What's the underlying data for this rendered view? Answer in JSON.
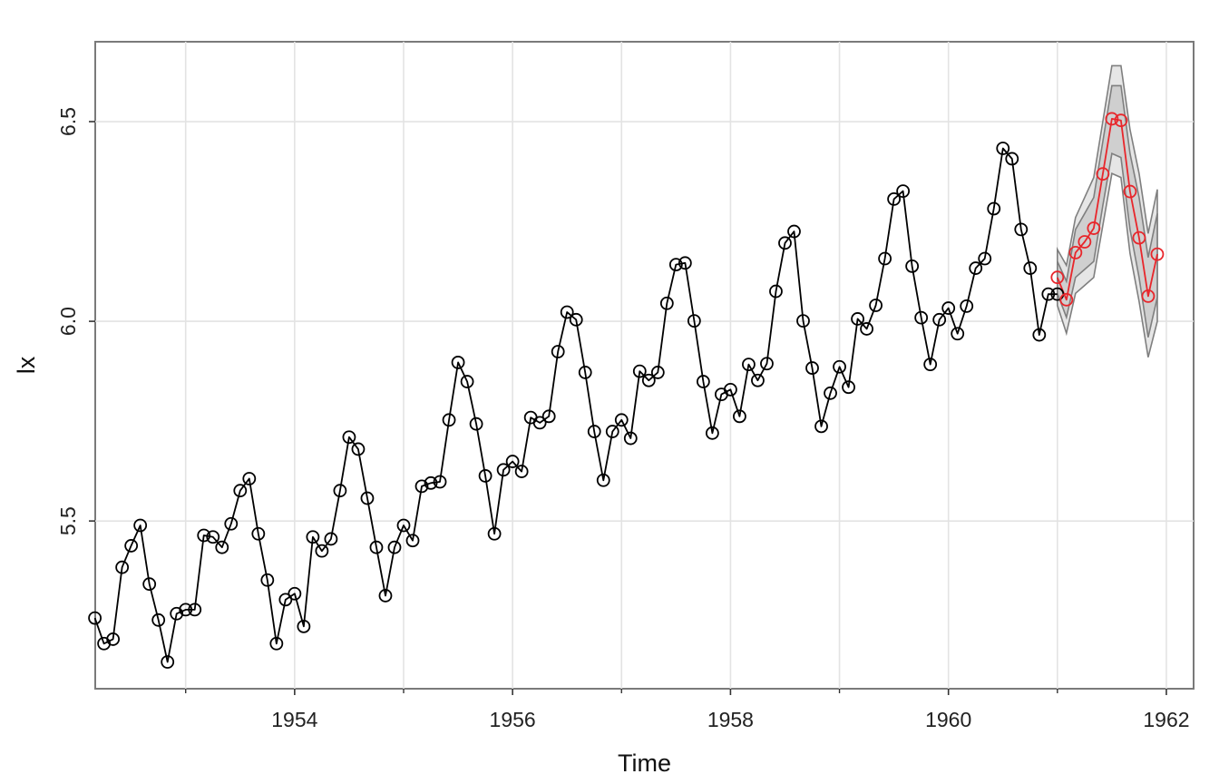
{
  "chart_data": {
    "type": "line",
    "title": "",
    "xlabel": "Time",
    "ylabel": "lx",
    "xlim": [
      1952.17,
      1962.25
    ],
    "ylim": [
      5.08,
      6.7
    ],
    "grid": true,
    "x_ticks": [
      1954,
      1956,
      1958,
      1960,
      1962
    ],
    "x_tick_labels": [
      "1954",
      "1956",
      "1958",
      "1960",
      "1962"
    ],
    "x_minor_ticks": [
      1953,
      1955,
      1957,
      1959,
      1961
    ],
    "y_ticks": [
      5.5,
      6.0,
      6.5
    ],
    "y_tick_labels": [
      "5.5",
      "6.0",
      "6.5"
    ],
    "series": [
      {
        "role": "observed",
        "color": "#000000",
        "start": 1952.1667,
        "step": 0.0833333,
        "values": [
          5.257,
          5.193,
          5.204,
          5.384,
          5.438,
          5.489,
          5.342,
          5.252,
          5.147,
          5.268,
          5.278,
          5.278,
          5.464,
          5.46,
          5.434,
          5.493,
          5.576,
          5.606,
          5.468,
          5.352,
          5.193,
          5.303,
          5.318,
          5.236,
          5.46,
          5.425,
          5.455,
          5.576,
          5.71,
          5.68,
          5.557,
          5.434,
          5.313,
          5.434,
          5.489,
          5.451,
          5.587,
          5.595,
          5.598,
          5.753,
          5.897,
          5.849,
          5.743,
          5.613,
          5.468,
          5.628,
          5.649,
          5.624,
          5.759,
          5.746,
          5.762,
          5.924,
          6.023,
          6.004,
          5.872,
          5.724,
          5.602,
          5.724,
          5.753,
          5.707,
          5.875,
          5.852,
          5.872,
          6.045,
          6.142,
          6.146,
          6.001,
          5.849,
          5.72,
          5.817,
          5.829,
          5.762,
          5.892,
          5.852,
          5.894,
          6.075,
          6.196,
          6.225,
          6.001,
          5.883,
          5.737,
          5.82,
          5.886,
          5.835,
          6.006,
          5.981,
          6.04,
          6.157,
          6.306,
          6.326,
          6.138,
          6.009,
          5.892,
          6.004,
          6.033,
          5.969,
          6.038,
          6.133,
          6.157,
          6.282,
          6.433,
          6.407,
          6.23,
          6.133,
          5.966,
          6.068,
          6.068
        ]
      },
      {
        "role": "forecast",
        "color": "#e8262b",
        "start": 1961.0,
        "step": 0.0833333,
        "values": [
          6.11,
          6.054,
          6.172,
          6.199,
          6.233,
          6.369,
          6.507,
          6.503,
          6.325,
          6.209,
          6.063,
          6.168
        ],
        "band_80": {
          "lower": [
            6.07,
            6.01,
            6.11,
            6.13,
            6.15,
            6.29,
            6.42,
            6.41,
            6.23,
            6.11,
            5.96,
            6.06
          ],
          "upper": [
            6.15,
            6.1,
            6.23,
            6.27,
            6.31,
            6.45,
            6.59,
            6.59,
            6.42,
            6.31,
            6.16,
            6.27
          ]
        },
        "band_95": {
          "lower": [
            6.04,
            5.97,
            6.07,
            6.09,
            6.11,
            6.24,
            6.37,
            6.36,
            6.17,
            6.05,
            5.91,
            6.0
          ],
          "upper": [
            6.18,
            6.14,
            6.26,
            6.31,
            6.36,
            6.5,
            6.64,
            6.64,
            6.48,
            6.37,
            6.22,
            6.33
          ]
        },
        "band_color": "#7f7f7f"
      }
    ]
  }
}
